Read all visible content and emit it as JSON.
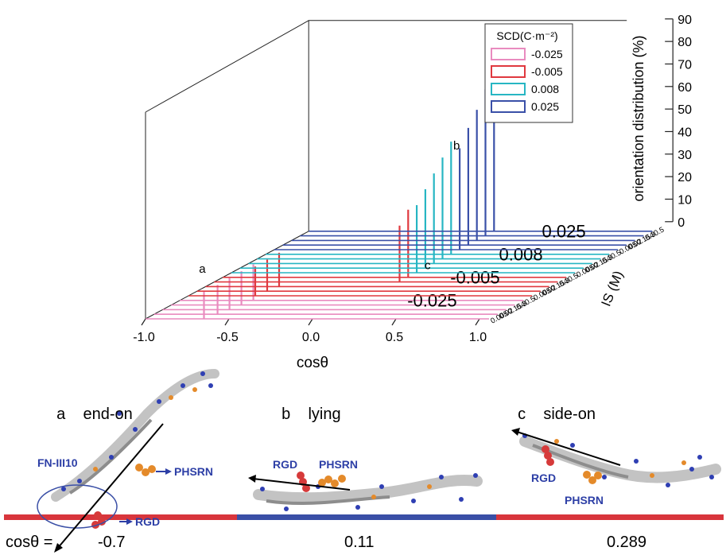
{
  "chart_data": {
    "type": "bar",
    "title": "",
    "xlabel": "cosθ",
    "ylabel": "orientation distribution (%)",
    "zlabel": "IS (M)",
    "xlim": [
      -1.0,
      1.0
    ],
    "ylim": [
      0,
      90
    ],
    "x_ticks": [
      "-1.0",
      "-0.5",
      "0.0",
      "0.5",
      "1.0"
    ],
    "y_ticks": [
      "0",
      "10",
      "20",
      "30",
      "40",
      "50",
      "60",
      "70",
      "80",
      "90"
    ],
    "is_tick_labels": [
      "0.005",
      "0.02",
      "0.154",
      "0.3",
      "0.5"
    ],
    "legend_title": "SCD(C·m⁻²)",
    "legend_position": "top-right",
    "series": [
      {
        "name": "-0.025",
        "color": "#e98bbf",
        "group_label": "-0.025",
        "ionic_strength": [
          0.005,
          0.02,
          0.154,
          0.3,
          0.5
        ],
        "peak_cos": [
          -0.65,
          -0.62,
          -0.6,
          -0.58,
          -0.56
        ],
        "peak_values": [
          12,
          13,
          14,
          15,
          16
        ]
      },
      {
        "name": "-0.005",
        "color": "#e0393f",
        "group_label": "-0.005",
        "ionic_strength": [
          0.005,
          0.02,
          0.154,
          0.3,
          0.5
        ],
        "peak_cos": [
          -0.6,
          -0.58,
          -0.56,
          0.11,
          0.11
        ],
        "peak_values": [
          13,
          14,
          15,
          25,
          30
        ]
      },
      {
        "name": "0.008",
        "color": "#27b6c3",
        "group_label": "0.008",
        "ionic_strength": [
          0.005,
          0.02,
          0.154,
          0.3,
          0.5
        ],
        "peak_cos": [
          0.11,
          0.11,
          0.11,
          0.11,
          0.11
        ],
        "peak_values": [
          30,
          35,
          40,
          45,
          50
        ]
      },
      {
        "name": "0.025",
        "color": "#3a50a8",
        "group_label": "0.025",
        "ionic_strength": [
          0.005,
          0.02,
          0.154,
          0.3,
          0.5
        ],
        "peak_cos": [
          0.11,
          0.11,
          0.11,
          0.11,
          0.11
        ],
        "peak_values": [
          45,
          52,
          58,
          65,
          74
        ]
      }
    ],
    "annotations": [
      {
        "label": "a",
        "near_cos": -0.65
      },
      {
        "label": "b",
        "near_cos": 0.11
      },
      {
        "label": "c",
        "near_cos": 0.289
      }
    ]
  },
  "panels": [
    {
      "letter": "a",
      "name": "end-on",
      "cos_value": "-0.7"
    },
    {
      "letter": "b",
      "name": "lying",
      "cos_value": "0.11"
    },
    {
      "letter": "c",
      "name": "side-on",
      "cos_value": "0.289"
    }
  ],
  "cos_prefix": "cosθ =",
  "molecule_labels": {
    "fn": "FN-III10",
    "rgd": "RGD",
    "phsrn": "PHSRN"
  },
  "colors": {
    "surface_red": "#d8353c",
    "surface_blue": "#3a4fa6",
    "label_blue": "#2d3fa6"
  }
}
